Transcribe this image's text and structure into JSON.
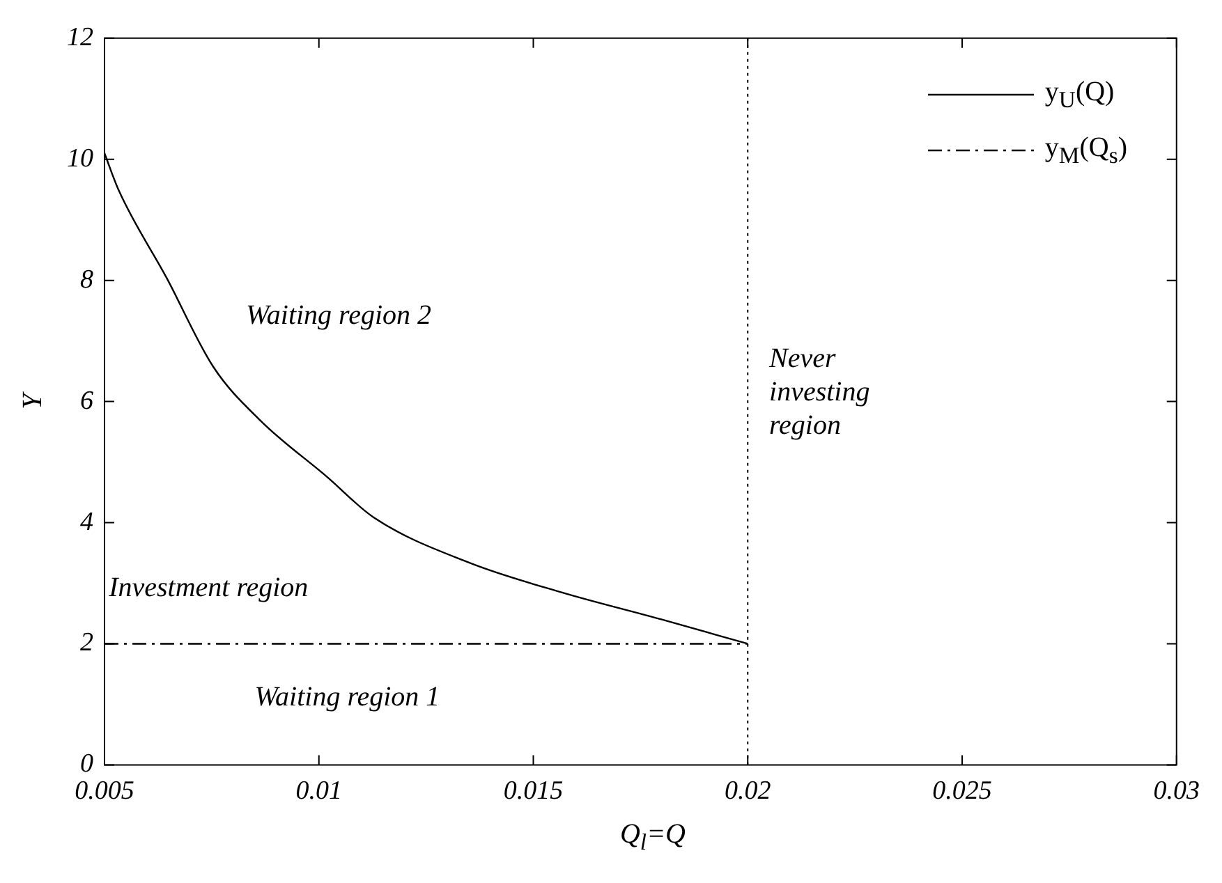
{
  "chart_data": {
    "type": "line",
    "xlabel": "Q$_{l}$=Q",
    "ylabel": "Y",
    "xlim": [
      0.005,
      0.03
    ],
    "xticks": [
      0.005,
      0.01,
      0.015,
      0.02,
      0.025,
      0.03
    ],
    "ylim": [
      0,
      12
    ],
    "yticks": [
      0,
      2,
      4,
      6,
      8,
      10,
      12
    ],
    "grid": false,
    "legend": "top right",
    "marker": "none",
    "series": [
      {
        "name": "y$_{U}$(Q)",
        "color": "#000000",
        "line_style": "solid",
        "x": [
          0.005,
          0.00533,
          0.00645,
          0.00754,
          0.00863,
          0.0102,
          0.01127,
          0.0135,
          0.0157,
          0.018,
          0.02
        ],
        "values": [
          10.1,
          9.49,
          8.04,
          6.57,
          5.69,
          4.75,
          4.09,
          3.34,
          2.84,
          2.4,
          2.0
        ]
      },
      {
        "name": "y$_{M}$(Q$_{s}$)",
        "color": "#000000",
        "line_style": "dashed",
        "x": [
          0.005,
          0.02
        ],
        "values": [
          2,
          2
        ]
      }
    ],
    "ref_lines": [
      {
        "axis": "x",
        "value": 0.02,
        "color": "#000000",
        "line_style": "dotted"
      }
    ],
    "annotations": [
      "Waiting region 2",
      "Investment region",
      "Waiting region 1",
      "Never\ninvesting\nregion"
    ]
  }
}
